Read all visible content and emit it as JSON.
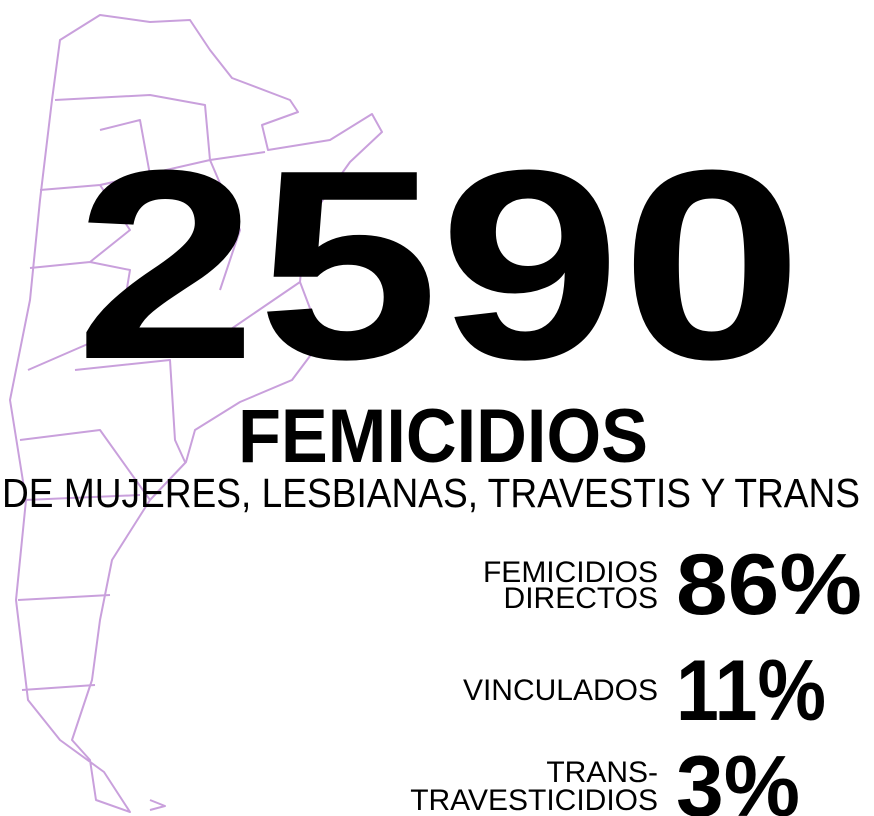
{
  "headline": {
    "number": "2590",
    "title": "FEMICIDIOS",
    "subtitle": "DE MUJERES, LESBIANAS, TRAVESTIS Y TRANS"
  },
  "breakdown": [
    {
      "label_lines": [
        "FEMICIDIOS",
        "DIRECTOS"
      ],
      "value": "86%"
    },
    {
      "label_lines": [
        "VINCULADOS"
      ],
      "value": "11%"
    },
    {
      "label_lines": [
        "TRANS-",
        "TRAVESTICIDIOS"
      ],
      "value": "3%"
    }
  ]
}
